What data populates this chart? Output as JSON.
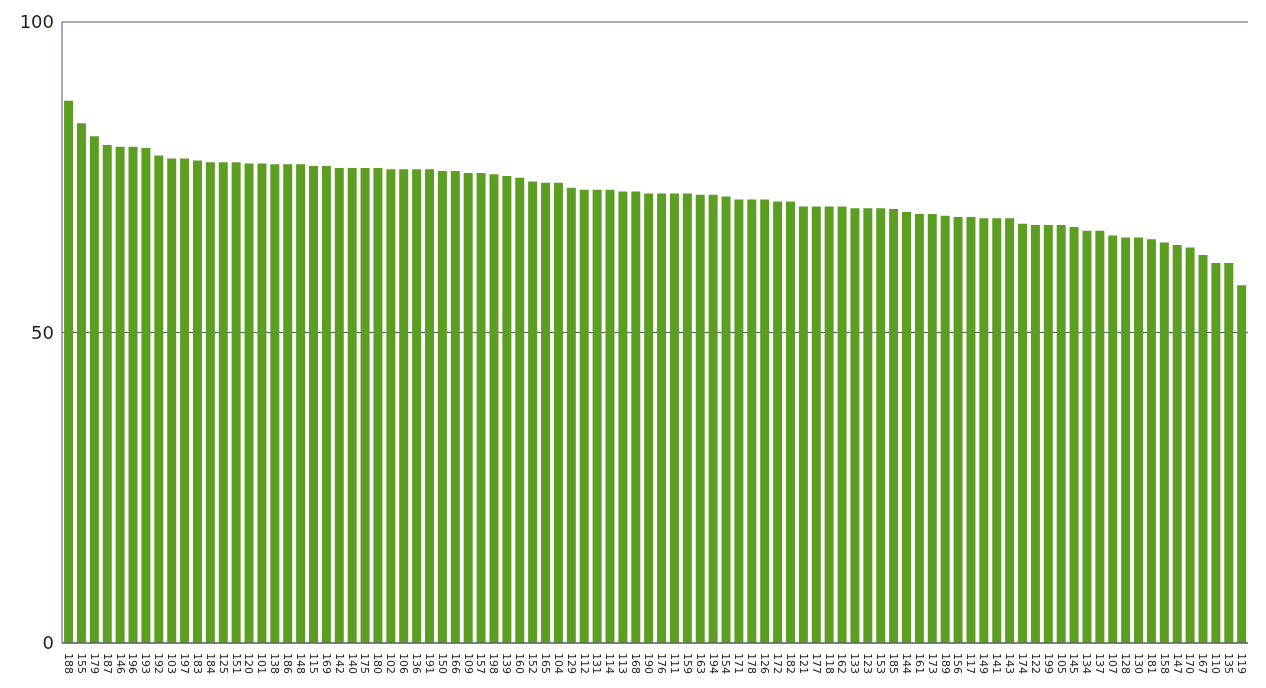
{
  "chart_data": {
    "type": "bar",
    "categories": [
      "188",
      "155",
      "179",
      "187",
      "146",
      "196",
      "193",
      "192",
      "103",
      "197",
      "183",
      "184",
      "125",
      "151",
      "120",
      "101",
      "138",
      "186",
      "148",
      "115",
      "169",
      "142",
      "140",
      "175",
      "180",
      "102",
      "106",
      "136",
      "191",
      "150",
      "166",
      "109",
      "157",
      "198",
      "139",
      "160",
      "152",
      "165",
      "104",
      "129",
      "112",
      "131",
      "114",
      "113",
      "168",
      "190",
      "176",
      "111",
      "159",
      "163",
      "194",
      "154",
      "171",
      "178",
      "126",
      "172",
      "182",
      "121",
      "177",
      "118",
      "162",
      "133",
      "123",
      "153",
      "185",
      "144",
      "161",
      "173",
      "189",
      "156",
      "117",
      "149",
      "141",
      "143",
      "174",
      "122",
      "199",
      "105",
      "145",
      "134",
      "137",
      "107",
      "128",
      "130",
      "181",
      "158",
      "147",
      "170",
      "167",
      "110",
      "135",
      "119"
    ],
    "values": [
      87.3,
      83.7,
      81.6,
      80.2,
      79.9,
      79.9,
      79.7,
      78.5,
      78.0,
      78.0,
      77.7,
      77.4,
      77.4,
      77.4,
      77.2,
      77.2,
      77.1,
      77.1,
      77.1,
      76.8,
      76.8,
      76.5,
      76.5,
      76.5,
      76.5,
      76.3,
      76.3,
      76.3,
      76.3,
      76.0,
      76.0,
      75.7,
      75.7,
      75.5,
      75.2,
      74.9,
      74.3,
      74.1,
      74.1,
      73.3,
      73.0,
      73.0,
      73.0,
      72.7,
      72.7,
      72.4,
      72.4,
      72.4,
      72.4,
      72.2,
      72.2,
      71.9,
      71.4,
      71.4,
      71.4,
      71.1,
      71.1,
      70.3,
      70.3,
      70.3,
      70.3,
      70.0,
      70.0,
      70.0,
      69.9,
      69.4,
      69.1,
      69.1,
      68.8,
      68.6,
      68.6,
      68.4,
      68.4,
      68.4,
      67.5,
      67.3,
      67.3,
      67.3,
      67.0,
      66.4,
      66.4,
      65.6,
      65.3,
      65.3,
      65.0,
      64.5,
      64.1,
      63.7,
      62.5,
      61.2,
      61.2,
      57.6
    ],
    "color": "#5c9e22",
    "ylim": [
      0,
      100
    ],
    "yticks": [
      0,
      50,
      100
    ],
    "grid": "y"
  }
}
